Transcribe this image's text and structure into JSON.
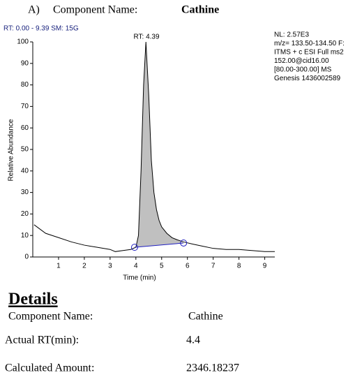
{
  "header": {
    "index": "A)",
    "label": "Component Name:",
    "value": "Cathine"
  },
  "chart_data": {
    "type": "line",
    "range_text": "RT: 0.00 - 9.39  SM: 15G",
    "peak_label": "RT: 4.39",
    "info": [
      "NL: 2.57E3",
      "m/z= 133.50-134.50 F:",
      "ITMS + c ESI Full ms2",
      "152.00@cid16.00",
      "[80.00-300.00]  MS",
      "Genesis 1436002589"
    ],
    "x_label": "Time (min)",
    "y_label": "Relative Abundance",
    "xlim": [
      0,
      9.39
    ],
    "ylim": [
      0,
      100
    ],
    "xticks": [
      1,
      2,
      3,
      4,
      5,
      6,
      7,
      8,
      9
    ],
    "yticks": [
      0,
      10,
      20,
      30,
      40,
      50,
      60,
      70,
      80,
      90,
      100
    ],
    "x": [
      0.05,
      0.5,
      1,
      1.5,
      2,
      2.5,
      3,
      3.2,
      3.5,
      3.8,
      4.0,
      4.1,
      4.2,
      4.3,
      4.39,
      4.5,
      4.6,
      4.7,
      4.8,
      4.9,
      5.0,
      5.2,
      5.4,
      5.6,
      5.85,
      6.2,
      6.6,
      7,
      7.5,
      8,
      8.5,
      9,
      9.39
    ],
    "series": [
      {
        "color": "#000000",
        "values": [
          15,
          11,
          9,
          7,
          5.5,
          4.5,
          3.5,
          2.5,
          3,
          3.5,
          4.5,
          10,
          40,
          80,
          100,
          75,
          45,
          30,
          22,
          17,
          14,
          11,
          9,
          8,
          7,
          6,
          5,
          4,
          3.5,
          3.5,
          3,
          2.5,
          2.5
        ]
      }
    ],
    "integration": {
      "x": [
        3.95,
        5.85
      ],
      "values": [
        4.5,
        6.5
      ],
      "fill": "#c0c0c0",
      "color": "#2020c0"
    }
  },
  "details": {
    "title": "Details",
    "rows": [
      {
        "label": "Component Name:",
        "value": "Cathine"
      },
      {
        "label": "Actual RT(min):",
        "value": "4.4"
      },
      {
        "label": "Calculated Amount:",
        "value": "2346.18237"
      }
    ]
  }
}
